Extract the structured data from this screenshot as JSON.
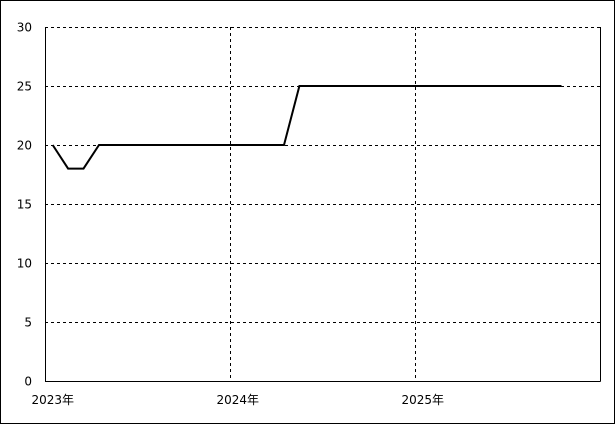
{
  "chart_data": {
    "type": "line",
    "title": "",
    "xlabel": "",
    "ylabel": "",
    "ylim": [
      0,
      30
    ],
    "yticks": [
      "0",
      "5",
      "10",
      "15",
      "20",
      "25",
      "30"
    ],
    "xticks": [
      {
        "label": "2023年",
        "month": 0
      },
      {
        "label": "2024年",
        "month": 12
      },
      {
        "label": "2025年",
        "month": 24
      }
    ],
    "x_range_months": [
      0,
      36
    ],
    "grid": true,
    "grid_style": "dashed",
    "line_color": "#000000",
    "series": [
      {
        "x": [
          "2023-01",
          "2023-02",
          "2023-03",
          "2023-04",
          "2023-05",
          "2023-06",
          "2023-07",
          "2023-08",
          "2023-09",
          "2023-10",
          "2023-11",
          "2023-12",
          "2024-01",
          "2024-02",
          "2024-03",
          "2024-04",
          "2024-05",
          "2024-06",
          "2024-07",
          "2024-08",
          "2024-09",
          "2024-10",
          "2024-11",
          "2024-12",
          "2025-01",
          "2025-02",
          "2025-03",
          "2025-04",
          "2025-05",
          "2025-06",
          "2025-07",
          "2025-08",
          "2025-09",
          "2025-10"
        ],
        "values": [
          20,
          18,
          18,
          20,
          20,
          20,
          20,
          20,
          20,
          20,
          20,
          20,
          20,
          20,
          20,
          20,
          25,
          25,
          25,
          25,
          25,
          25,
          25,
          25,
          25,
          25,
          25,
          25,
          25,
          25,
          25,
          25,
          25,
          25
        ]
      }
    ]
  }
}
